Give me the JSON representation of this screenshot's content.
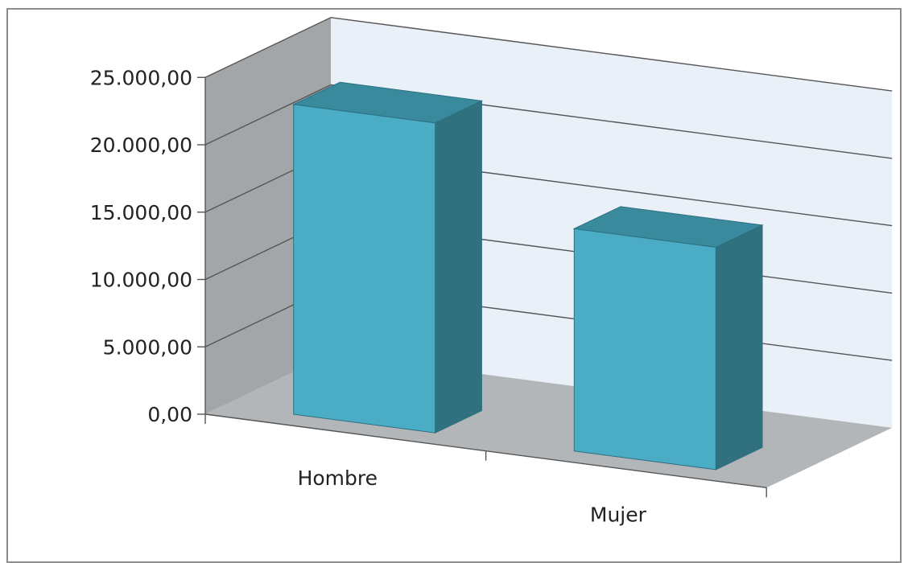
{
  "chart_data": {
    "type": "bar",
    "style": "3d-column",
    "categories": [
      "Hombre",
      "Mujer"
    ],
    "values": [
      23000,
      16500
    ],
    "ylim": [
      0,
      25000
    ],
    "y_ticks": [
      0,
      5000,
      10000,
      15000,
      20000,
      25000
    ],
    "y_tick_labels": [
      "0,00",
      "5.000,00",
      "10.000,00",
      "15.000,00",
      "20.000,00",
      "25.000,00"
    ],
    "grid": true,
    "legend": "none",
    "title": "",
    "xlabel": "",
    "ylabel": ""
  },
  "colors": {
    "bar_front": "#4bacc6",
    "bar_side": "#31707f",
    "bar_top": "#3a8a9e",
    "back_wall": "#e9f0f8",
    "side_wall": "#a3a6a9",
    "floor": "#b3b6b9",
    "gridline": "#555555",
    "frame": "#8c8c8c"
  }
}
